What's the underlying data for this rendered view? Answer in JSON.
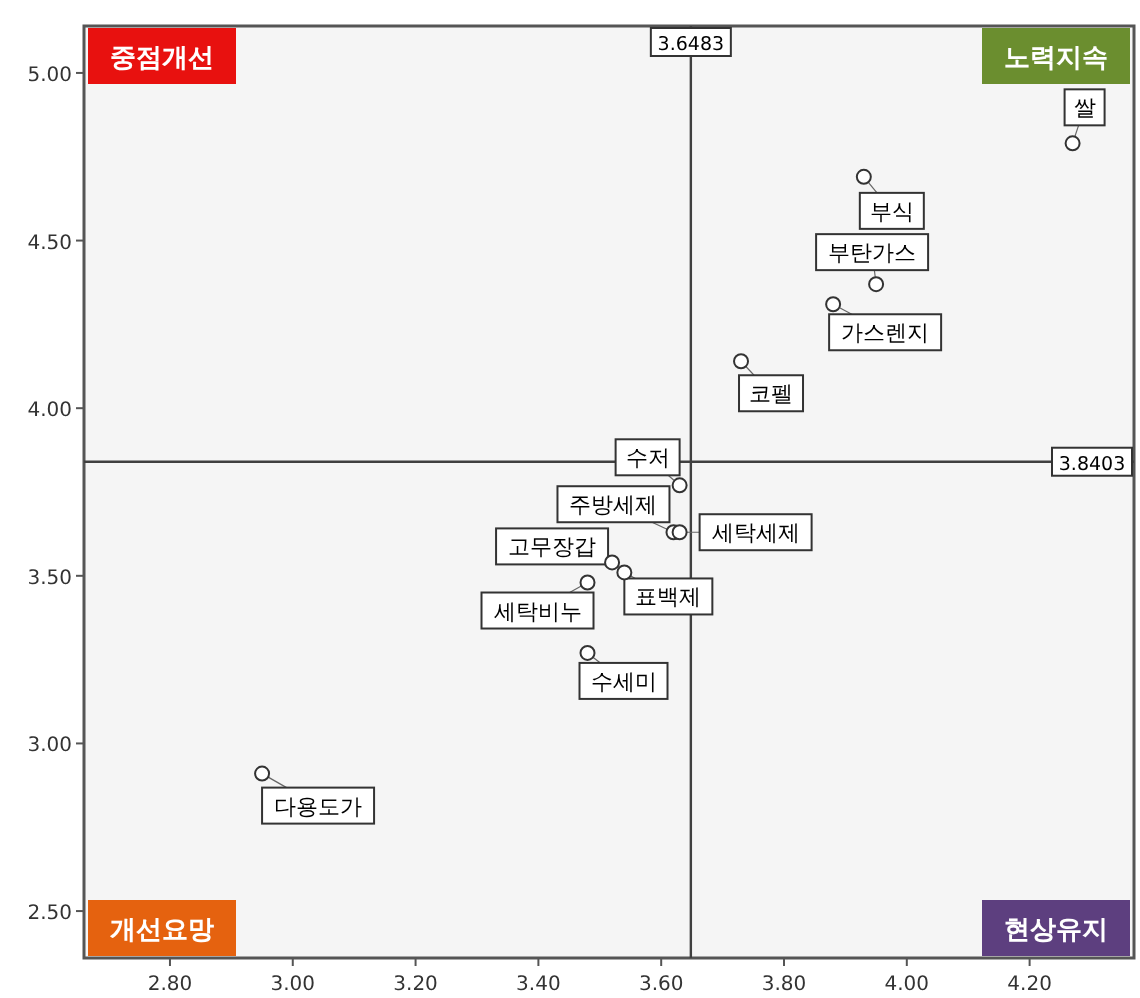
{
  "chart_data": {
    "type": "scatter",
    "series": [
      {
        "color": "#ffffff",
        "x": [
          4.27,
          3.93,
          3.95,
          3.88,
          3.73,
          3.63,
          3.62,
          3.63,
          3.52,
          3.54,
          3.48,
          3.48,
          2.95
        ],
        "values": [
          4.79,
          4.69,
          4.37,
          4.31,
          4.14,
          3.77,
          3.63,
          3.63,
          3.54,
          3.51,
          3.48,
          3.27,
          2.91
        ]
      }
    ],
    "xlim": [
      2.66,
      4.37
    ],
    "ylim": [
      2.36,
      5.14
    ],
    "xticks": [
      {
        "value": 2.8,
        "label": "2.80"
      },
      {
        "value": 3.0,
        "label": "3.00"
      },
      {
        "value": 3.2,
        "label": "3.20"
      },
      {
        "value": 3.4,
        "label": "3.40"
      },
      {
        "value": 3.6,
        "label": "3.60"
      },
      {
        "value": 3.8,
        "label": "3.80"
      },
      {
        "value": 4.0,
        "label": "4.00"
      },
      {
        "value": 4.2,
        "label": "4.20"
      }
    ],
    "yticks": [
      {
        "value": 2.5,
        "label": "2.50"
      },
      {
        "value": 3.0,
        "label": "3.00"
      },
      {
        "value": 3.5,
        "label": "3.50"
      },
      {
        "value": 4.0,
        "label": "4.00"
      },
      {
        "value": 4.5,
        "label": "4.50"
      },
      {
        "value": 5.0,
        "label": "5.00"
      }
    ],
    "marker": "circle",
    "grid": false,
    "ref_lines": [
      {
        "axis": "x",
        "value": 3.6483,
        "label": "3.6483",
        "color": "#404040"
      },
      {
        "axis": "y",
        "value": 3.8403,
        "label": "3.8403",
        "color": "#404040"
      }
    ],
    "annotations": [
      {
        "text": "쌀",
        "x": 4.27,
        "y": 4.79
      },
      {
        "text": "부식",
        "x": 3.93,
        "y": 4.69
      },
      {
        "text": "부탄가스",
        "x": 3.95,
        "y": 4.37
      },
      {
        "text": "가스렌지",
        "x": 3.88,
        "y": 4.31
      },
      {
        "text": "코펠",
        "x": 3.73,
        "y": 4.14
      },
      {
        "text": "수저",
        "x": 3.63,
        "y": 3.77
      },
      {
        "text": "주방세제",
        "x": 3.62,
        "y": 3.63
      },
      {
        "text": "세탁세제",
        "x": 3.63,
        "y": 3.63
      },
      {
        "text": "고무장갑",
        "x": 3.52,
        "y": 3.54
      },
      {
        "text": "표백제",
        "x": 3.54,
        "y": 3.51
      },
      {
        "text": "세탁비누",
        "x": 3.48,
        "y": 3.48
      },
      {
        "text": "수세미",
        "x": 3.48,
        "y": 3.27
      },
      {
        "text": "다용도가",
        "x": 2.95,
        "y": 2.91
      },
      "중점개선",
      "노력지속",
      "개선요망",
      "현상유지"
    ]
  }
}
